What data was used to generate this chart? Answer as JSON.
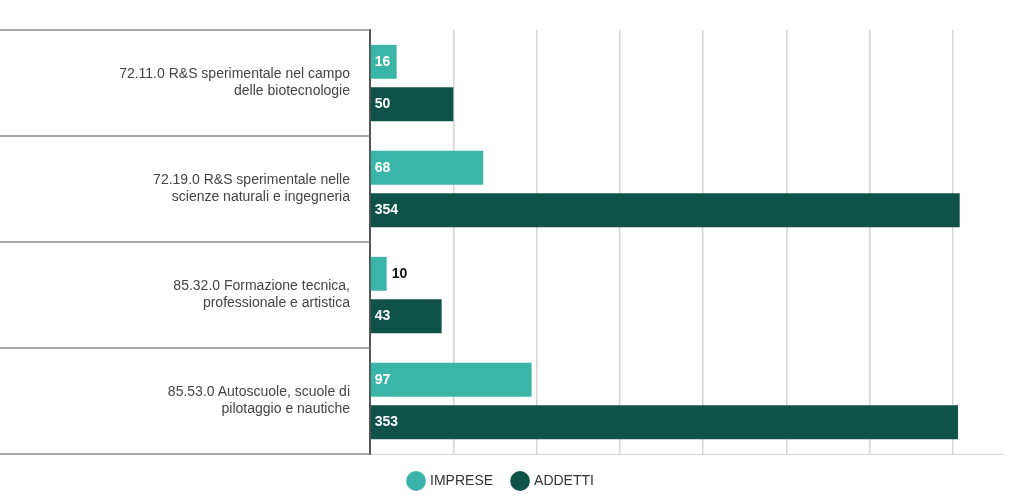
{
  "chart_data": {
    "type": "bar",
    "orientation": "horizontal",
    "categories": [
      "72.11.0 R&S sperimentale nel campo delle biotecnologie",
      "72.19.0 R&S sperimentale nelle scienze naturali e ingegneria",
      "85.32.0 Formazione tecnica, professionale e artistica",
      "85.53.0 Autoscuole, scuole di pilotaggio e nautiche"
    ],
    "series": [
      {
        "name": "IMPRESE",
        "color": "#3bb5a8",
        "values": [
          16,
          68,
          10,
          97
        ]
      },
      {
        "name": "ADDETTI",
        "color": "#0f5248",
        "values": [
          50,
          354,
          43,
          353
        ]
      }
    ],
    "xlim": [
      0,
      380
    ],
    "xticks": [
      {
        "value": 0,
        "label": null
      },
      {
        "value": 50,
        "label": null
      },
      {
        "value": 100,
        "label": null
      },
      {
        "value": 150,
        "label": null
      },
      {
        "value": 200,
        "label": null
      },
      {
        "value": 250,
        "label": null
      },
      {
        "value": 300,
        "label": null
      },
      {
        "value": 350,
        "label": null
      }
    ],
    "grid": "x",
    "tick_labels": "y",
    "data_labels": true,
    "legend": "bottom"
  }
}
